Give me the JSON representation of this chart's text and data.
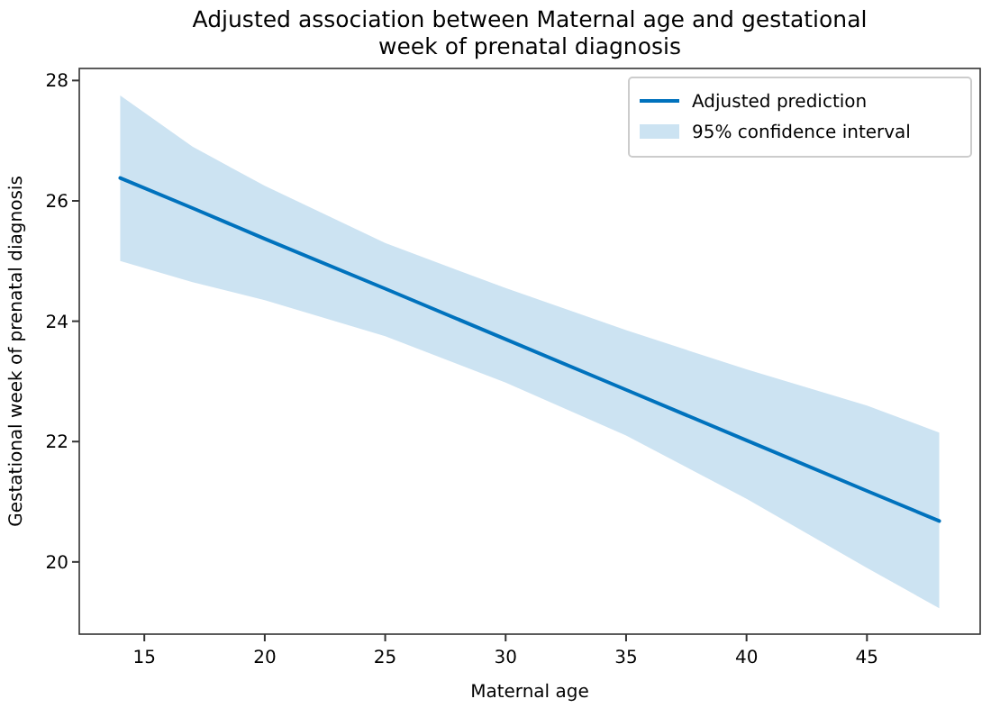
{
  "chart_data": {
    "type": "line",
    "title": "Adjusted association between Maternal age and gestational\nweek of prenatal diagnosis",
    "xlabel": "Maternal age",
    "ylabel": "Gestational week of prenatal diagnosis",
    "x": [
      14,
      17,
      20,
      25,
      30,
      35,
      40,
      45,
      48
    ],
    "series": [
      {
        "name": "Adjusted prediction",
        "color": "#0072bd",
        "values": [
          26.38,
          25.88,
          25.37,
          24.54,
          23.7,
          22.86,
          22.02,
          21.18,
          20.68
        ],
        "lower": [
          25.0,
          24.65,
          24.35,
          23.75,
          22.98,
          22.1,
          21.05,
          19.9,
          19.23
        ],
        "upper": [
          27.75,
          26.9,
          26.25,
          25.3,
          24.55,
          23.85,
          23.2,
          22.6,
          22.15
        ]
      }
    ],
    "annotations": [
      "95% confidence interval"
    ],
    "xlim": [
      12.3,
      49.7
    ],
    "xticks": [
      15,
      20,
      25,
      30,
      35,
      40,
      45
    ],
    "ylim": [
      18.8,
      28.2
    ],
    "yticks": [
      20,
      22,
      24,
      26,
      28
    ],
    "legend": "top right",
    "grid": false,
    "marker": "none",
    "line_style": "solid"
  }
}
